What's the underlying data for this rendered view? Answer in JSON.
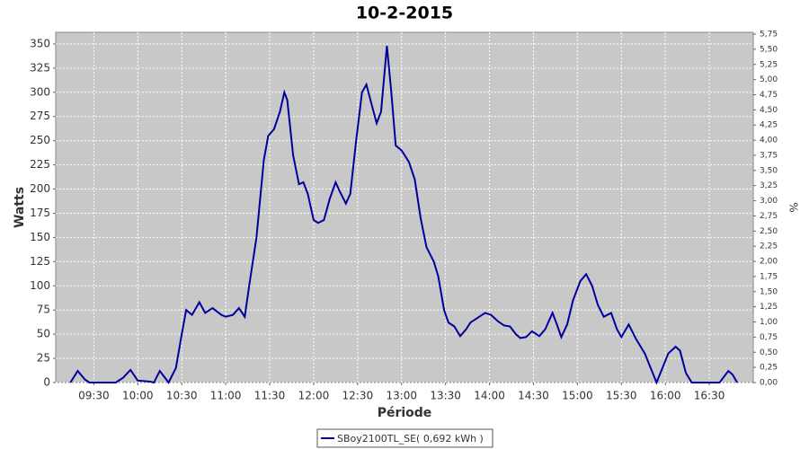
{
  "chart_data": {
    "type": "line",
    "title": "10-2-2015",
    "x_label": "Période",
    "y_label": "Watts",
    "y2_label": "%",
    "x": [
      "09:14",
      "09:19",
      "09:24",
      "09:27",
      "09:45",
      "09:50",
      "09:55",
      "10:00",
      "10:08",
      "10:11",
      "10:15",
      "10:18",
      "10:21",
      "10:26",
      "10:30",
      "10:33",
      "10:37",
      "10:42",
      "10:46",
      "10:51",
      "10:57",
      "11:00",
      "11:05",
      "11:09",
      "11:13",
      "11:16",
      "11:21",
      "11:26",
      "11:29",
      "11:33",
      "11:37",
      "11:40",
      "11:42",
      "11:46",
      "11:50",
      "11:53",
      "11:56",
      "12:00",
      "12:03",
      "12:07",
      "12:11",
      "12:15",
      "12:18",
      "12:22",
      "12:25",
      "12:29",
      "12:33",
      "12:36",
      "12:40",
      "12:43",
      "12:46",
      "12:50",
      "12:53",
      "12:56",
      "13:00",
      "13:05",
      "13:09",
      "13:13",
      "13:17",
      "13:22",
      "13:25",
      "13:29",
      "13:32",
      "13:36",
      "13:40",
      "13:44",
      "13:47",
      "13:52",
      "13:57",
      "14:01",
      "14:06",
      "14:10",
      "14:14",
      "14:18",
      "14:21",
      "14:25",
      "14:29",
      "14:34",
      "14:38",
      "14:43",
      "14:46",
      "14:49",
      "14:53",
      "14:57",
      "15:02",
      "15:06",
      "15:10",
      "15:14",
      "15:18",
      "15:23",
      "15:27",
      "15:30",
      "15:35",
      "15:40",
      "15:46",
      "15:50",
      "15:54",
      "15:58",
      "16:02",
      "16:07",
      "16:10",
      "16:14",
      "16:18",
      "16:30",
      "16:37",
      "16:43",
      "16:46",
      "16:49"
    ],
    "series": [
      {
        "name": "SBoy2100TL_SE( 0,692 kWh )",
        "color": "#0000a0",
        "values": [
          0,
          12,
          3,
          0,
          0,
          5,
          13,
          2,
          1,
          0,
          12,
          6,
          0,
          15,
          50,
          75,
          70,
          83,
          72,
          77,
          70,
          68,
          70,
          77,
          68,
          100,
          150,
          230,
          255,
          262,
          280,
          300,
          292,
          235,
          205,
          207,
          195,
          168,
          165,
          168,
          190,
          207,
          197,
          185,
          195,
          250,
          300,
          308,
          285,
          268,
          280,
          348,
          300,
          245,
          240,
          228,
          210,
          170,
          140,
          125,
          110,
          75,
          62,
          58,
          48,
          55,
          62,
          67,
          72,
          70,
          63,
          59,
          58,
          50,
          46,
          47,
          53,
          48,
          55,
          72,
          60,
          47,
          60,
          85,
          105,
          112,
          100,
          80,
          68,
          72,
          55,
          47,
          60,
          45,
          30,
          15,
          0,
          15,
          30,
          37,
          33,
          10,
          0,
          0,
          0,
          12,
          8,
          0
        ]
      }
    ],
    "xlim": [
      "09:04",
      "17:00"
    ],
    "xticks": [
      "09:30",
      "10:00",
      "10:30",
      "11:00",
      "11:30",
      "12:00",
      "12:30",
      "13:00",
      "13:30",
      "14:00",
      "14:30",
      "15:00",
      "15:30",
      "16:00",
      "16:30"
    ],
    "ylim": [
      0,
      362
    ],
    "yticks": [
      0,
      25,
      50,
      75,
      100,
      125,
      150,
      175,
      200,
      225,
      250,
      275,
      300,
      325,
      350
    ],
    "y2lim": [
      0,
      5.78
    ],
    "y2ticks": [
      {
        "value": 0,
        "label": "0,00"
      },
      {
        "value": 0.25,
        "label": "0,25"
      },
      {
        "value": 0.5,
        "label": "0,50"
      },
      {
        "value": 0.75,
        "label": "0,75"
      },
      {
        "value": 1,
        "label": "1,00"
      },
      {
        "value": 1.25,
        "label": "1,25"
      },
      {
        "value": 1.5,
        "label": "1,50"
      },
      {
        "value": 1.75,
        "label": "1,75"
      },
      {
        "value": 2,
        "label": "2,00"
      },
      {
        "value": 2.25,
        "label": "2,25"
      },
      {
        "value": 2.5,
        "label": "2,50"
      },
      {
        "value": 2.75,
        "label": "2,75"
      },
      {
        "value": 3,
        "label": "3,00"
      },
      {
        "value": 3.25,
        "label": "3,25"
      },
      {
        "value": 3.5,
        "label": "3,50"
      },
      {
        "value": 3.75,
        "label": "3,75"
      },
      {
        "value": 4,
        "label": "4,00"
      },
      {
        "value": 4.25,
        "label": "4,25"
      },
      {
        "value": 4.5,
        "label": "4,50"
      },
      {
        "value": 4.75,
        "label": "4,75"
      },
      {
        "value": 5,
        "label": "5,00"
      },
      {
        "value": 5.25,
        "label": "5,25"
      },
      {
        "value": 5.5,
        "label": "5,50"
      },
      {
        "value": 5.75,
        "label": "5,75"
      }
    ],
    "grid": true
  }
}
